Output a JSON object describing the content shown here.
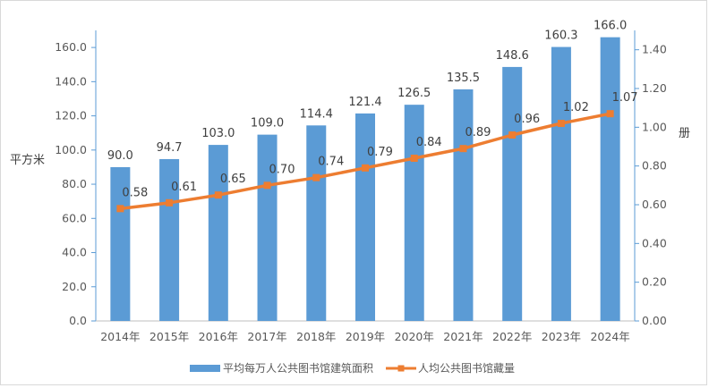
{
  "chart_data": {
    "type": "bar",
    "categories": [
      "2014年",
      "2015年",
      "2016年",
      "2017年",
      "2018年",
      "2019年",
      "2020年",
      "2021年",
      "2022年",
      "2023年",
      "2024年"
    ],
    "series": [
      {
        "name": "平均每万人公共图书馆建筑面积",
        "type": "bar",
        "axis": "left",
        "color": "#5b9bd5",
        "values": [
          90.0,
          94.7,
          103.0,
          109.0,
          114.4,
          121.4,
          126.5,
          135.5,
          148.6,
          160.3,
          166.0
        ],
        "labels": [
          "90.0",
          "94.7",
          "103.0",
          "109.0",
          "114.4",
          "121.4",
          "126.5",
          "135.5",
          "148.6",
          "160.3",
          "166.0"
        ]
      },
      {
        "name": "人均公共图书馆藏量",
        "type": "line",
        "axis": "right",
        "color": "#ed7d31",
        "values": [
          0.58,
          0.61,
          0.65,
          0.7,
          0.74,
          0.79,
          0.84,
          0.89,
          0.96,
          1.02,
          1.07
        ],
        "labels": [
          "0.58",
          "0.61",
          "0.65",
          "0.70",
          "0.74",
          "0.79",
          "0.84",
          "0.89",
          "0.96",
          "1.02",
          "1.07"
        ]
      }
    ],
    "ylabel": "平方米",
    "y2label": "册",
    "ylim": [
      0,
      170
    ],
    "y2lim": [
      0,
      1.5
    ],
    "yticks": [
      "0.0",
      "20.0",
      "40.0",
      "60.0",
      "80.0",
      "100.0",
      "120.0",
      "140.0",
      "160.0"
    ],
    "y2ticks": [
      "0.00",
      "0.20",
      "0.40",
      "0.60",
      "0.80",
      "1.00",
      "1.20",
      "1.40"
    ],
    "grid": false,
    "legend": "bottom"
  }
}
